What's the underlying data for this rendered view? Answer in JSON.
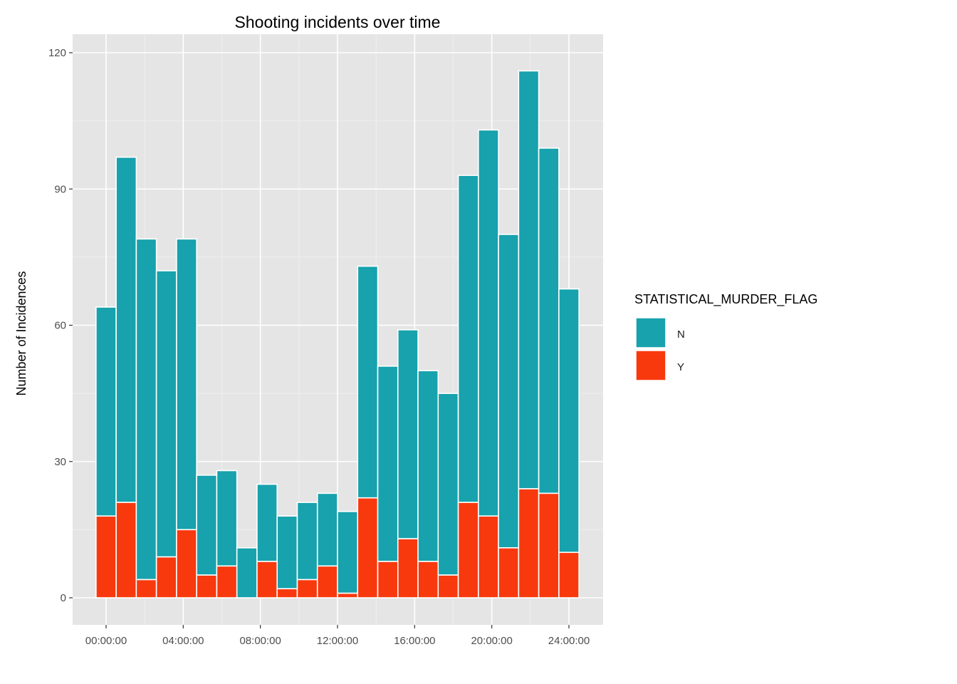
{
  "chart_data": {
    "type": "bar",
    "stacked": true,
    "title": "Shooting incidents over time",
    "xlabel": "",
    "ylabel": "Number of Incidences",
    "ylim": [
      -6,
      124
    ],
    "y_ticks": [
      0,
      30,
      60,
      90,
      120
    ],
    "x_ticks": [
      "00:00:00",
      "04:00:00",
      "08:00:00",
      "12:00:00",
      "16:00:00",
      "20:00:00",
      "24:00:00"
    ],
    "grid": true,
    "legend": {
      "title": "STATISTICAL_MURDER_FLAG",
      "position": "right"
    },
    "x": [
      "00:00:00",
      "01:02:37",
      "02:05:13",
      "03:07:50",
      "04:10:26",
      "05:13:03",
      "06:15:39",
      "07:18:16",
      "08:20:52",
      "09:23:29",
      "10:26:05",
      "11:28:42",
      "12:31:18",
      "13:33:55",
      "14:36:31",
      "15:39:08",
      "16:41:44",
      "17:44:21",
      "18:46:57",
      "19:49:34",
      "20:52:10",
      "21:54:47",
      "22:57:23",
      "24:00:00"
    ],
    "series": [
      {
        "name": "N",
        "color": "#17A2AD",
        "values": [
          46,
          76,
          75,
          63,
          64,
          22,
          21,
          11,
          17,
          16,
          17,
          16,
          18,
          51,
          43,
          46,
          42,
          40,
          72,
          85,
          69,
          92,
          76,
          58
        ]
      },
      {
        "name": "Y",
        "color": "#F8390E",
        "values": [
          18,
          21,
          4,
          9,
          15,
          5,
          7,
          0,
          8,
          2,
          4,
          7,
          1,
          22,
          8,
          13,
          8,
          5,
          21,
          18,
          11,
          24,
          23,
          10
        ]
      }
    ]
  }
}
